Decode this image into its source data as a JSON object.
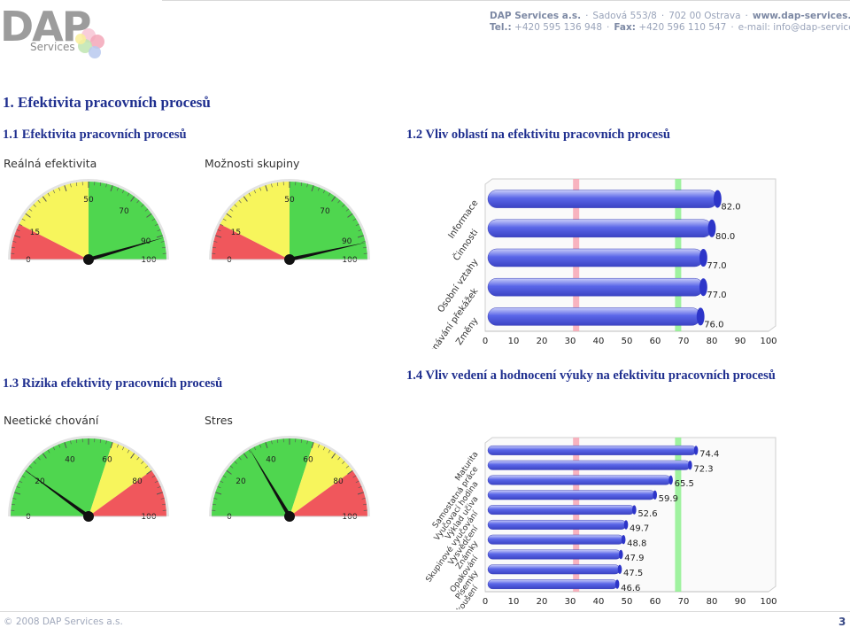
{
  "header": {
    "logo_text": "DAP",
    "logo_sub": "Services",
    "company": "DAP Services a.s.",
    "address1": "Sadová 553/8",
    "address2": "702 00 Ostrava",
    "web": "www.dap-services.cz",
    "tel_label": "Tel.:",
    "tel": "+420 595 136 948",
    "fax_label": "Fax:",
    "fax": "+420 596 110 547",
    "email": "e-mail: info@dap-services.cz"
  },
  "page": {
    "title": "1. Efektivita pracovních procesů",
    "sec11": "1.1 Efektivita pracovních procesů",
    "sec12": "1.2 Vliv oblastí na efektivitu pracovních procesů",
    "sec13": "1.3 Rizika efektivity pracovních procesů",
    "sec14": "1.4 Vliv vedení a hodnocení výuky na efektivitu pracovních procesů"
  },
  "gauges": [
    {
      "label": "Reálná efektivita",
      "ticks": [
        "0",
        "15",
        "50",
        "70",
        "90",
        "100"
      ],
      "tick_values": [
        0,
        15,
        50,
        70,
        90,
        100
      ],
      "bands": [
        {
          "from": 0,
          "to": 15,
          "color": "#f0575c"
        },
        {
          "from": 15,
          "to": 50,
          "color": "#f7f55c"
        },
        {
          "from": 50,
          "to": 100,
          "color": "#4fd64f"
        }
      ],
      "value": 91
    },
    {
      "label": "Možnosti skupiny",
      "ticks": [
        "0",
        "15",
        "50",
        "70",
        "90",
        "100"
      ],
      "tick_values": [
        0,
        15,
        50,
        70,
        90,
        100
      ],
      "bands": [
        {
          "from": 0,
          "to": 15,
          "color": "#f0575c"
        },
        {
          "from": 15,
          "to": 50,
          "color": "#f7f55c"
        },
        {
          "from": 50,
          "to": 100,
          "color": "#4fd64f"
        }
      ],
      "value": 93
    },
    {
      "label": "Neetické chování",
      "ticks": [
        "0",
        "20",
        "40",
        "60",
        "80",
        "100"
      ],
      "tick_values": [
        0,
        20,
        40,
        60,
        80,
        100
      ],
      "bands": [
        {
          "from": 0,
          "to": 60,
          "color": "#4fd64f"
        },
        {
          "from": 60,
          "to": 80,
          "color": "#f7f55c"
        },
        {
          "from": 80,
          "to": 100,
          "color": "#f0575c"
        }
      ],
      "value": 20
    },
    {
      "label": "Stres",
      "ticks": [
        "0",
        "20",
        "40",
        "60",
        "80",
        "100"
      ],
      "tick_values": [
        0,
        20,
        40,
        60,
        80,
        100
      ],
      "bands": [
        {
          "from": 0,
          "to": 60,
          "color": "#4fd64f"
        },
        {
          "from": 60,
          "to": 80,
          "color": "#f7f55c"
        },
        {
          "from": 80,
          "to": 100,
          "color": "#f0575c"
        }
      ],
      "value": 33
    }
  ],
  "chart_data": [
    {
      "type": "bar",
      "orientation": "horizontal",
      "categories": [
        "Informace",
        "Činnosti",
        "Osobní vztahy",
        "Překonávání překážek",
        "Změny"
      ],
      "values": [
        82.0,
        80.0,
        77.0,
        77.0,
        76.0
      ],
      "value_labels": [
        "82.0",
        "80.0",
        "77.0",
        "77.0",
        "76.0"
      ],
      "xlim": [
        0,
        100
      ],
      "xticks": [
        "0",
        "10",
        "20",
        "30",
        "40",
        "50",
        "60",
        "70",
        "80",
        "90",
        "100"
      ],
      "marker_lines": [
        {
          "value": 31,
          "color": "#f7a6b4"
        },
        {
          "value": 67,
          "color": "#8ef08e"
        }
      ],
      "bar_color": "#5a66e8",
      "grid": false
    },
    {
      "type": "bar",
      "orientation": "horizontal",
      "categories": [
        "Maturita",
        "Samostatná práce",
        "Vyučovací hodina",
        "Výklad učiva",
        "Skupinové vyučování",
        "Vysvědčení",
        "Známky",
        "Opakování",
        "Písemky",
        "Ústní zkoušení"
      ],
      "values": [
        74.4,
        72.3,
        65.5,
        59.9,
        52.6,
        49.7,
        48.8,
        47.9,
        47.5,
        46.6
      ],
      "value_labels": [
        "74.4",
        "72.3",
        "65.5",
        "59.9",
        "52.6",
        "49.7",
        "48.8",
        "47.9",
        "47.5",
        "46.6"
      ],
      "xlim": [
        0,
        100
      ],
      "xticks": [
        "0",
        "10",
        "20",
        "30",
        "40",
        "50",
        "60",
        "70",
        "80",
        "90",
        "100"
      ],
      "marker_lines": [
        {
          "value": 31,
          "color": "#f7a6b4"
        },
        {
          "value": 67,
          "color": "#8ef08e"
        }
      ],
      "bar_color": "#5a66e8",
      "grid": false
    }
  ],
  "footer": {
    "copyright": "© 2008 DAP Services a.s.",
    "page_number": "3"
  }
}
